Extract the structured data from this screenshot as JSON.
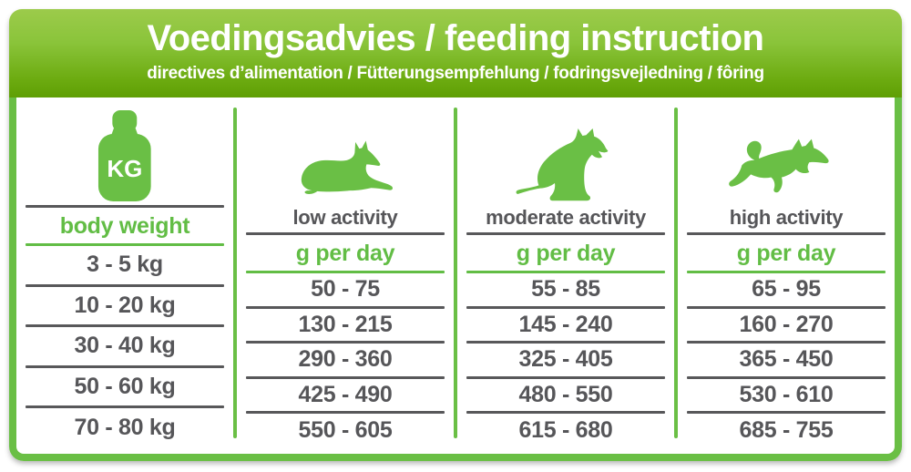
{
  "header": {
    "title": "Voedingsadvies / feeding instruction",
    "subtitle": "directives d’alimentation / Fütterungsempfehlung / fodringsvejledning / fôring"
  },
  "table": {
    "columns": [
      {
        "id": "body-weight",
        "icon": "kg-weight-icon",
        "icon_label": "KG",
        "activity_label": "",
        "unit_label": "body weight"
      },
      {
        "id": "low-activity",
        "icon": "lying-dog-icon",
        "activity_label": "low activity",
        "unit_label": "g per day"
      },
      {
        "id": "moderate-activity",
        "icon": "sitting-dog-icon",
        "activity_label": "moderate activity",
        "unit_label": "g per day"
      },
      {
        "id": "high-activity",
        "icon": "jumping-dog-icon",
        "activity_label": "high activity",
        "unit_label": "g per day"
      }
    ],
    "rows": [
      [
        "3 - 5 kg",
        "50 - 75",
        "55 - 85",
        "65 - 95"
      ],
      [
        "10 - 20 kg",
        "130 - 215",
        "145 - 240",
        "160 - 270"
      ],
      [
        "30 - 40 kg",
        "290 - 360",
        "325 - 405",
        "365 - 450"
      ],
      [
        "50 - 60 kg",
        "425 - 490",
        "480 - 550",
        "530 - 610"
      ],
      [
        "70 - 80 kg",
        "550 - 605",
        "615 - 680",
        "685 - 755"
      ]
    ]
  },
  "colors": {
    "accent_green": "#62bd45",
    "border_green": "#6abf45",
    "header_gradient_top": "#9ccb4b",
    "header_gradient_bottom": "#5f9f04",
    "text_gray": "#565659",
    "line_gray": "#58585a",
    "text_white": "#ffffff"
  }
}
